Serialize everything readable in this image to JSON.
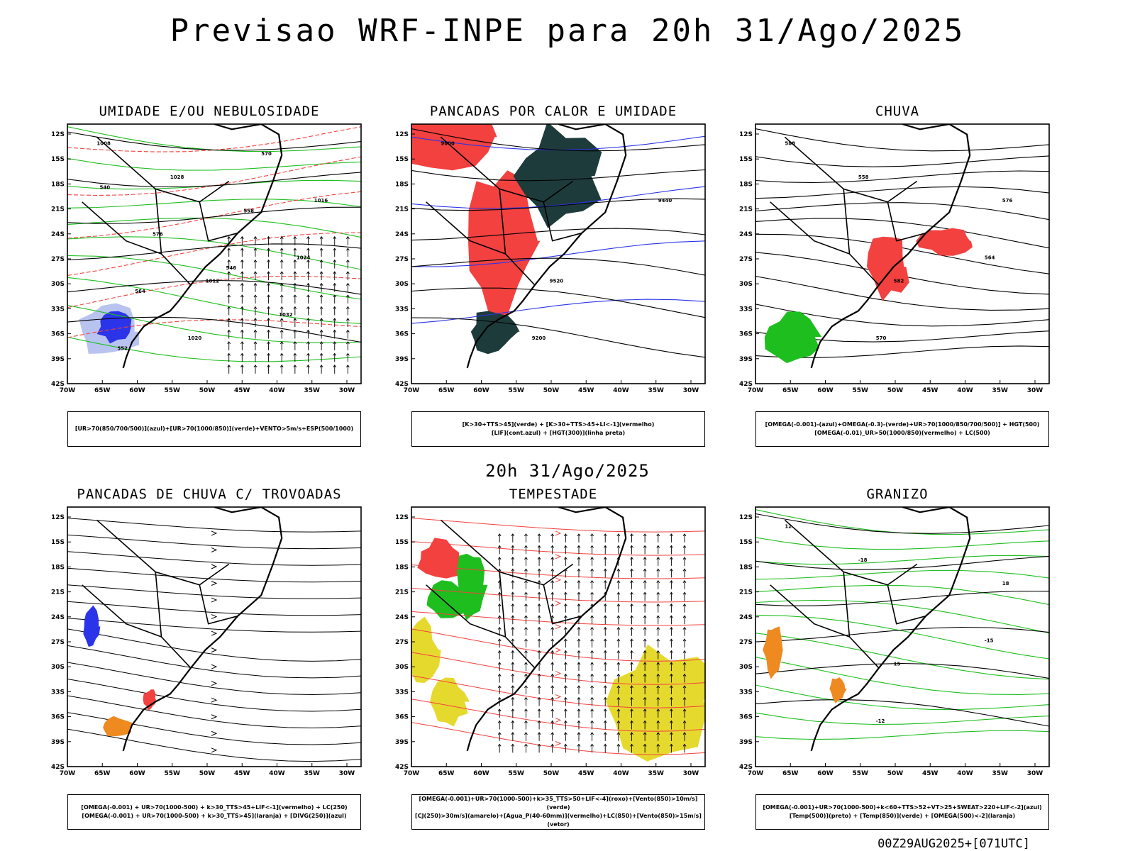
{
  "header": {
    "title": "Previsao WRF-INPE  para 20h 31/Ago/2025"
  },
  "row_label": "20h 31/Ago/2025",
  "footer": "00Z29AUG2025+[071UTC]",
  "axes": {
    "lat_labels": [
      "12S",
      "15S",
      "18S",
      "21S",
      "24S",
      "27S",
      "30S",
      "33S",
      "36S",
      "39S",
      "42S"
    ],
    "lon_labels": [
      "70W",
      "65W",
      "60W",
      "55W",
      "50W",
      "45W",
      "40W",
      "35W",
      "30W"
    ]
  },
  "colors": {
    "red": "#f2413f",
    "green": "#1fbe1f",
    "blue": "#2b34e8",
    "darkgreen": "#1e3b3b",
    "yellow": "#e6d92e",
    "orange": "#ef8a21",
    "lightblue": "#b9c3f0"
  },
  "panels": [
    {
      "title": "UMIDADE E/OU NEBULOSIDADE",
      "legend": [
        "[UR>70(850/700/500)](azul)+[UR>70(1000/850)](verde)+VENTO>5m/s+ESP(500/1000)"
      ],
      "contour_labels": [
        "1008",
        "1012",
        "1016",
        "1020",
        "1024",
        "1028",
        "1032",
        "576",
        "570",
        "564",
        "558",
        "552",
        "546",
        "540"
      ]
    },
    {
      "title": "PANCADAS POR CALOR E UMIDADE",
      "legend": [
        "[K>30+TTS>45](verde) + [K>30+TTS>45+LI<-1](vermelho)",
        "[LIF](cont.azul) + [HGT(300)](linha preta)"
      ],
      "contour_labels": [
        "9600",
        "9520",
        "9440",
        "9200"
      ]
    },
    {
      "title": "CHUVA",
      "legend": [
        "[OMEGA(-0.001)-(azul)+OMEGA(-0.3)-(verde)+UR>70(1000/850/700/500)] + HGT(500)",
        "[OMEGA(-0.01)_UR>50(1000/850)(vermelho) + LC(500)"
      ],
      "contour_labels": [
        "588",
        "582",
        "576",
        "570",
        "564",
        "558"
      ]
    },
    {
      "title": "PANCADAS DE CHUVA C/ TROVOADAS",
      "legend": [
        "[OMEGA(-0.001) + UR>70(1000-500) + k>30_TTS>45+LIF<-1](vermelho) + LC(250)",
        "[OMEGA(-0.001) + UR>70(1000-500) + k>30_TTS>45](laranja) + [DIVG(250)](azul)"
      ],
      "contour_labels": []
    },
    {
      "title": "TEMPESTADE",
      "legend": [
        "[OMEGA(-0.001)+UR>70(1000-500)+k>35_TTS>50+LIF<-4](roxo)+[Vento(850)>10m/s](verde)",
        "[CJ(250)>30m/s](amarelo)+[Agua_P(40-60mm)](vermelho)+LC(850)+[Vento(850)>15m/s](vetor)"
      ],
      "contour_labels": []
    },
    {
      "title": "GRANIZO",
      "legend": [
        "[OMEGA(-0.001)+UR>70(1000-500)+k<60+TTS>52+VT>25+SWEAT>220+LIF<-2](azul)",
        "[Temp(500)](preto) + [Temp(850)](verde) + [OMEGA(500)<-2](laranja)"
      ],
      "contour_labels": [
        "12",
        "15",
        "18",
        "-12",
        "-15",
        "-18"
      ]
    }
  ]
}
